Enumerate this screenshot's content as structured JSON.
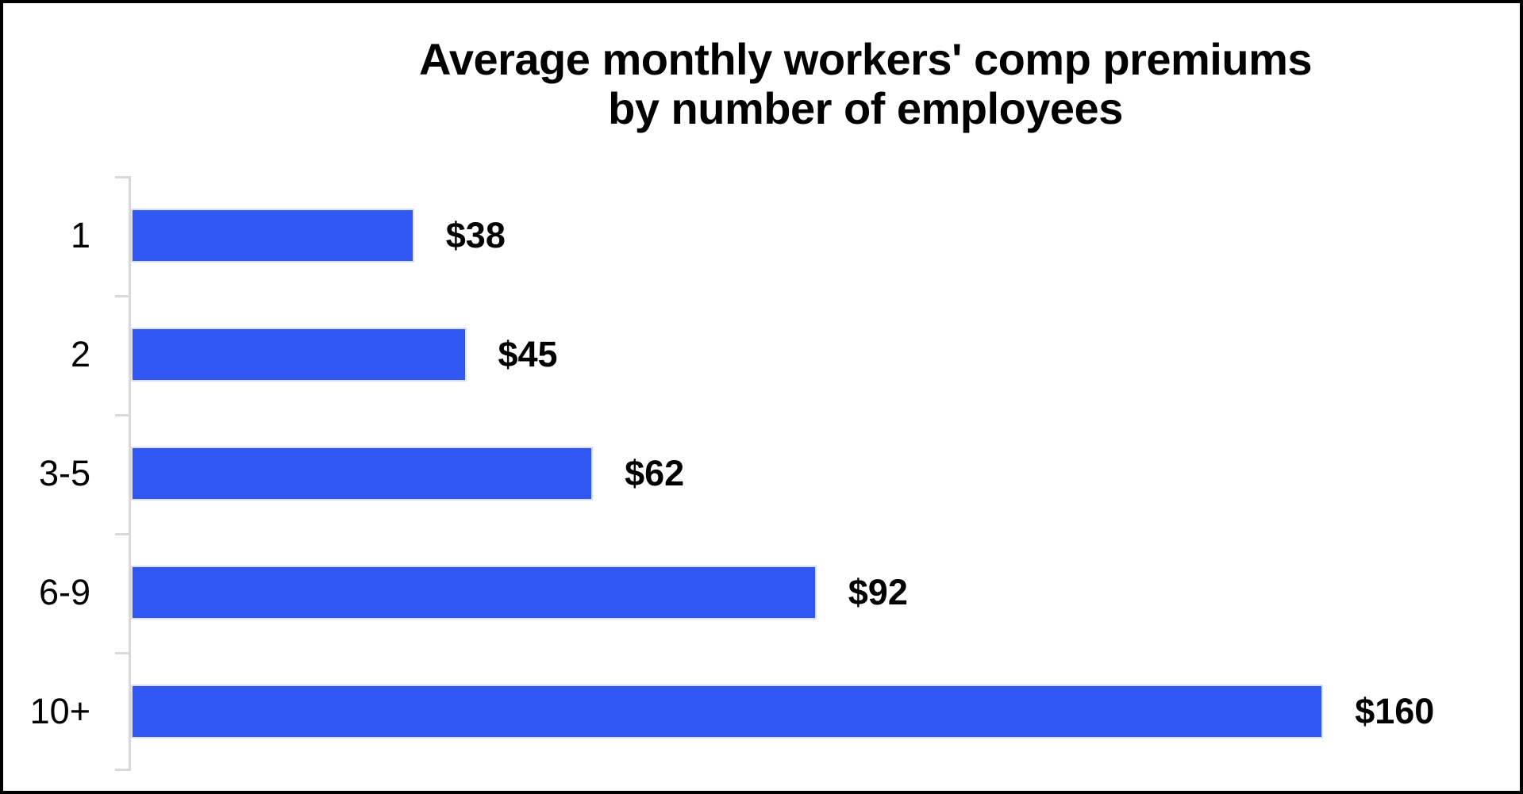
{
  "frame": {
    "background": "#FFFFFF",
    "border_color": "#000000"
  },
  "chart_data": {
    "type": "bar",
    "orientation": "horizontal",
    "title": "Average monthly workers' comp premiums by number of employees",
    "title_lines": [
      "Average monthly workers' comp premiums",
      "by number of employees"
    ],
    "categories": [
      "1",
      "2",
      "3-5",
      "6-9",
      "10+"
    ],
    "values": [
      38,
      45,
      62,
      92,
      160
    ],
    "value_labels": [
      "$38",
      "$45",
      "$62",
      "$92",
      "$160"
    ],
    "xlabel": "",
    "ylabel": "",
    "xlim": [
      0,
      180
    ],
    "grid": false,
    "legend": false,
    "axis_ticks_count": 6,
    "colors": {
      "bar": "#3157F2",
      "bar_edge": "#D8DFF8",
      "axis": "#D9D9D9",
      "text": "#000000"
    }
  }
}
